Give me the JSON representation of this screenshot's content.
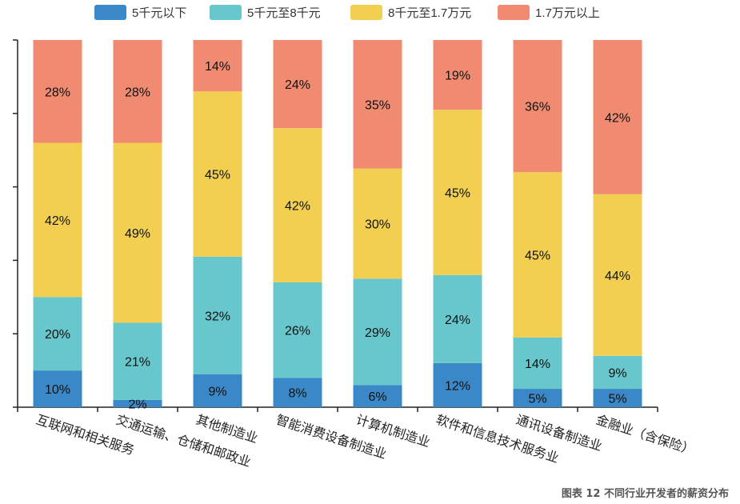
{
  "chart_data": {
    "type": "bar",
    "stacked": true,
    "normalized": true,
    "categories": [
      "互联网和相关服务",
      "交通运输、仓储和邮政业",
      "其他制造业",
      "智能消费设备制造业",
      "计算机制造业",
      "软件和信息技术服务业",
      "通讯设备制造业",
      "金融业（含保险）"
    ],
    "series": [
      {
        "name": "5千元以下",
        "color": "#3a88c8",
        "values": [
          10,
          2,
          9,
          8,
          6,
          12,
          5,
          5
        ],
        "labels": [
          "10%",
          "2%",
          "9%",
          "8%",
          "6%",
          "12%",
          "5%",
          "5%"
        ]
      },
      {
        "name": "5千元至8千元",
        "color": "#67c7cc",
        "values": [
          20,
          21,
          32,
          26,
          29,
          24,
          14,
          9
        ],
        "labels": [
          "20%",
          "21%",
          "32%",
          "26%",
          "29%",
          "24%",
          "14%",
          "9%"
        ]
      },
      {
        "name": "8千元至1.7万元",
        "color": "#f2cf50",
        "values": [
          42,
          49,
          45,
          42,
          30,
          45,
          45,
          44
        ],
        "labels": [
          "42%",
          "49%",
          "45%",
          "42%",
          "30%",
          "45%",
          "45%",
          "44%"
        ]
      },
      {
        "name": "1.7万元以上",
        "color": "#f08a70",
        "values": [
          28,
          28,
          14,
          24,
          35,
          19,
          36,
          42
        ],
        "labels": [
          "28%",
          "28%",
          "14%",
          "24%",
          "35%",
          "19%",
          "36%",
          "42%"
        ]
      }
    ],
    "ylim": [
      0,
      100
    ],
    "y_ticks": [
      0,
      20,
      40,
      60,
      80,
      100
    ],
    "legend": "top"
  },
  "caption": "图表 12 不同行业开发者的薪资分布"
}
